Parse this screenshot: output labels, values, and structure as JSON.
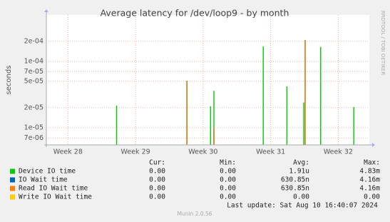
{
  "chart_data": {
    "type": "spike",
    "title": "Average latency for /dev/loop9 - by month",
    "y_label": "seconds",
    "side_text": "RRDTOOL / TOBI OETIKER",
    "log_y": true,
    "grid": true,
    "xlim": [
      27.68,
      32.46
    ],
    "xticks": [
      {
        "value": 28,
        "label": "Week 28"
      },
      {
        "value": 29,
        "label": "Week 29"
      },
      {
        "value": 30,
        "label": "Week 30"
      },
      {
        "value": 31,
        "label": "Week 31"
      },
      {
        "value": 32,
        "label": "Week 32"
      }
    ],
    "ylim": [
      5.5e-06,
      0.0005
    ],
    "yticks": [
      {
        "value": 7e-06,
        "label": "7e-06"
      },
      {
        "value": 1e-05,
        "label": "1e-05"
      },
      {
        "value": 2e-05,
        "label": "2e-05"
      },
      {
        "value": 5e-05,
        "label": "5e-05"
      },
      {
        "value": 7e-05,
        "label": "7e-05"
      },
      {
        "value": 0.0001,
        "label": "1e-04"
      },
      {
        "value": 0.0002,
        "label": "2e-04"
      }
    ],
    "series": [
      {
        "name": "Device IO time",
        "color": "#00cc00",
        "x": [
          28.72,
          29.76,
          30.11,
          30.16,
          30.89,
          31.24,
          31.49,
          31.74,
          32.23
        ],
        "values": [
          2.15e-05,
          5.1e-05,
          2.1e-05,
          3.6e-05,
          0.000168,
          4.2e-05,
          2.4e-05,
          0.000165,
          2.05e-05
        ]
      },
      {
        "name": "IO Wait time",
        "color": "#0066b3",
        "x": [
          29.76,
          30.16,
          31.51
        ],
        "values": [
          5e-05,
          1e-05,
          0.00021
        ]
      },
      {
        "name": "Read IO Wait time",
        "color": "#ff8000",
        "x": [
          29.76,
          30.16,
          31.51
        ],
        "values": [
          5e-05,
          1e-05,
          0.00021
        ]
      },
      {
        "name": "Write IO Wait time",
        "color": "#ffcc00",
        "x": [],
        "values": []
      }
    ],
    "legend_headers": [
      "Cur:",
      "Min:",
      "Avg:",
      "Max:"
    ],
    "legend_rows": [
      [
        "0.00",
        "0.00",
        "1.91u",
        "4.83m"
      ],
      [
        "0.00",
        "0.00",
        "630.85n",
        "4.16m"
      ],
      [
        "0.00",
        "0.00",
        "630.85n",
        "4.16m"
      ],
      [
        "0.00",
        "0.00",
        "0.00",
        "0.00"
      ]
    ],
    "last_update": "Last update: Sat Aug 10 16:40:07 2024",
    "footer": "Munin 2.0.56"
  }
}
